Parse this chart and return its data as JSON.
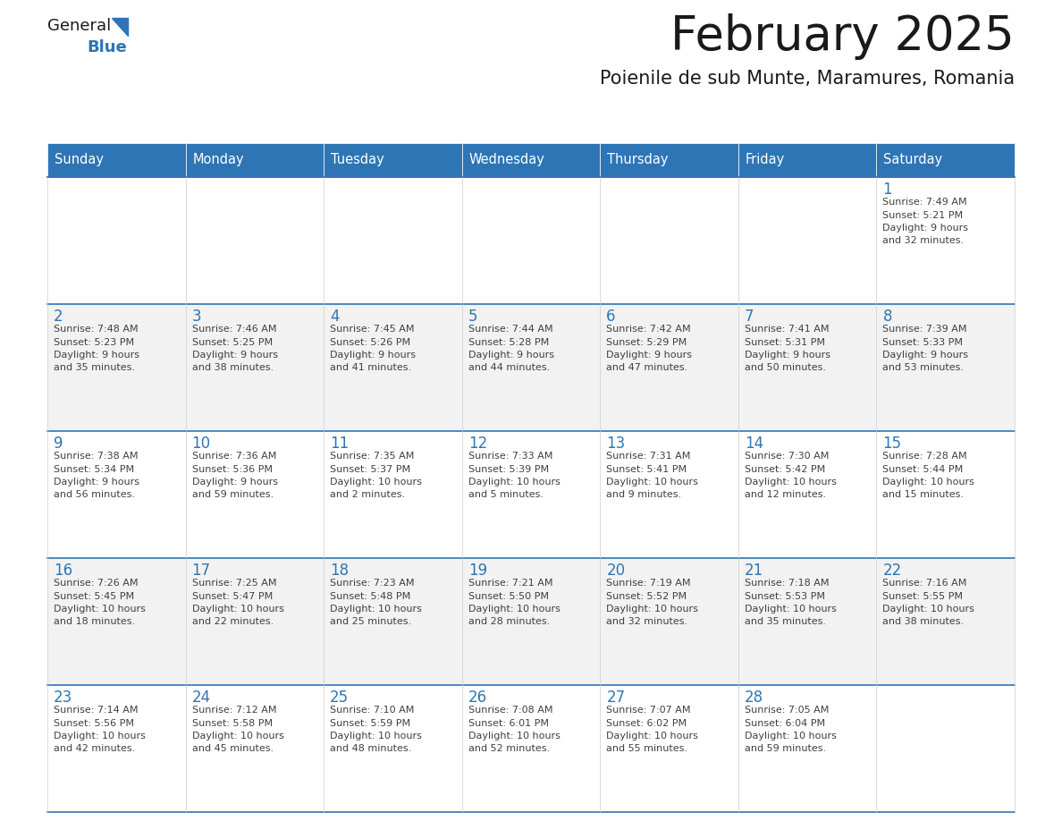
{
  "title": "February 2025",
  "subtitle": "Poienile de sub Munte, Maramures, Romania",
  "header_bg": "#2E75B6",
  "header_text_color": "#FFFFFF",
  "day_names": [
    "Sunday",
    "Monday",
    "Tuesday",
    "Wednesday",
    "Thursday",
    "Friday",
    "Saturday"
  ],
  "title_color": "#1a1a1a",
  "subtitle_color": "#1a1a1a",
  "cell_bg_even": "#F2F2F2",
  "cell_bg_odd": "#FFFFFF",
  "grid_line_color": "#2E75B6",
  "day_number_color": "#2E75B6",
  "info_text_color": "#404040",
  "logo_general_color": "#1a1a1a",
  "logo_blue_color": "#2E75B6",
  "logo_triangle_color": "#2E75B6",
  "calendar": [
    [
      null,
      null,
      null,
      null,
      null,
      null,
      {
        "day": 1,
        "sunrise": "7:49 AM",
        "sunset": "5:21 PM",
        "daylight": "9 hours",
        "daylight2": "and 32 minutes."
      }
    ],
    [
      {
        "day": 2,
        "sunrise": "7:48 AM",
        "sunset": "5:23 PM",
        "daylight": "9 hours",
        "daylight2": "and 35 minutes."
      },
      {
        "day": 3,
        "sunrise": "7:46 AM",
        "sunset": "5:25 PM",
        "daylight": "9 hours",
        "daylight2": "and 38 minutes."
      },
      {
        "day": 4,
        "sunrise": "7:45 AM",
        "sunset": "5:26 PM",
        "daylight": "9 hours",
        "daylight2": "and 41 minutes."
      },
      {
        "day": 5,
        "sunrise": "7:44 AM",
        "sunset": "5:28 PM",
        "daylight": "9 hours",
        "daylight2": "and 44 minutes."
      },
      {
        "day": 6,
        "sunrise": "7:42 AM",
        "sunset": "5:29 PM",
        "daylight": "9 hours",
        "daylight2": "and 47 minutes."
      },
      {
        "day": 7,
        "sunrise": "7:41 AM",
        "sunset": "5:31 PM",
        "daylight": "9 hours",
        "daylight2": "and 50 minutes."
      },
      {
        "day": 8,
        "sunrise": "7:39 AM",
        "sunset": "5:33 PM",
        "daylight": "9 hours",
        "daylight2": "and 53 minutes."
      }
    ],
    [
      {
        "day": 9,
        "sunrise": "7:38 AM",
        "sunset": "5:34 PM",
        "daylight": "9 hours",
        "daylight2": "and 56 minutes."
      },
      {
        "day": 10,
        "sunrise": "7:36 AM",
        "sunset": "5:36 PM",
        "daylight": "9 hours",
        "daylight2": "and 59 minutes."
      },
      {
        "day": 11,
        "sunrise": "7:35 AM",
        "sunset": "5:37 PM",
        "daylight": "10 hours",
        "daylight2": "and 2 minutes."
      },
      {
        "day": 12,
        "sunrise": "7:33 AM",
        "sunset": "5:39 PM",
        "daylight": "10 hours",
        "daylight2": "and 5 minutes."
      },
      {
        "day": 13,
        "sunrise": "7:31 AM",
        "sunset": "5:41 PM",
        "daylight": "10 hours",
        "daylight2": "and 9 minutes."
      },
      {
        "day": 14,
        "sunrise": "7:30 AM",
        "sunset": "5:42 PM",
        "daylight": "10 hours",
        "daylight2": "and 12 minutes."
      },
      {
        "day": 15,
        "sunrise": "7:28 AM",
        "sunset": "5:44 PM",
        "daylight": "10 hours",
        "daylight2": "and 15 minutes."
      }
    ],
    [
      {
        "day": 16,
        "sunrise": "7:26 AM",
        "sunset": "5:45 PM",
        "daylight": "10 hours",
        "daylight2": "and 18 minutes."
      },
      {
        "day": 17,
        "sunrise": "7:25 AM",
        "sunset": "5:47 PM",
        "daylight": "10 hours",
        "daylight2": "and 22 minutes."
      },
      {
        "day": 18,
        "sunrise": "7:23 AM",
        "sunset": "5:48 PM",
        "daylight": "10 hours",
        "daylight2": "and 25 minutes."
      },
      {
        "day": 19,
        "sunrise": "7:21 AM",
        "sunset": "5:50 PM",
        "daylight": "10 hours",
        "daylight2": "and 28 minutes."
      },
      {
        "day": 20,
        "sunrise": "7:19 AM",
        "sunset": "5:52 PM",
        "daylight": "10 hours",
        "daylight2": "and 32 minutes."
      },
      {
        "day": 21,
        "sunrise": "7:18 AM",
        "sunset": "5:53 PM",
        "daylight": "10 hours",
        "daylight2": "and 35 minutes."
      },
      {
        "day": 22,
        "sunrise": "7:16 AM",
        "sunset": "5:55 PM",
        "daylight": "10 hours",
        "daylight2": "and 38 minutes."
      }
    ],
    [
      {
        "day": 23,
        "sunrise": "7:14 AM",
        "sunset": "5:56 PM",
        "daylight": "10 hours",
        "daylight2": "and 42 minutes."
      },
      {
        "day": 24,
        "sunrise": "7:12 AM",
        "sunset": "5:58 PM",
        "daylight": "10 hours",
        "daylight2": "and 45 minutes."
      },
      {
        "day": 25,
        "sunrise": "7:10 AM",
        "sunset": "5:59 PM",
        "daylight": "10 hours",
        "daylight2": "and 48 minutes."
      },
      {
        "day": 26,
        "sunrise": "7:08 AM",
        "sunset": "6:01 PM",
        "daylight": "10 hours",
        "daylight2": "and 52 minutes."
      },
      {
        "day": 27,
        "sunrise": "7:07 AM",
        "sunset": "6:02 PM",
        "daylight": "10 hours",
        "daylight2": "and 55 minutes."
      },
      {
        "day": 28,
        "sunrise": "7:05 AM",
        "sunset": "6:04 PM",
        "daylight": "10 hours",
        "daylight2": "and 59 minutes."
      },
      null
    ]
  ],
  "figsize": [
    11.88,
    9.18
  ],
  "dpi": 100
}
